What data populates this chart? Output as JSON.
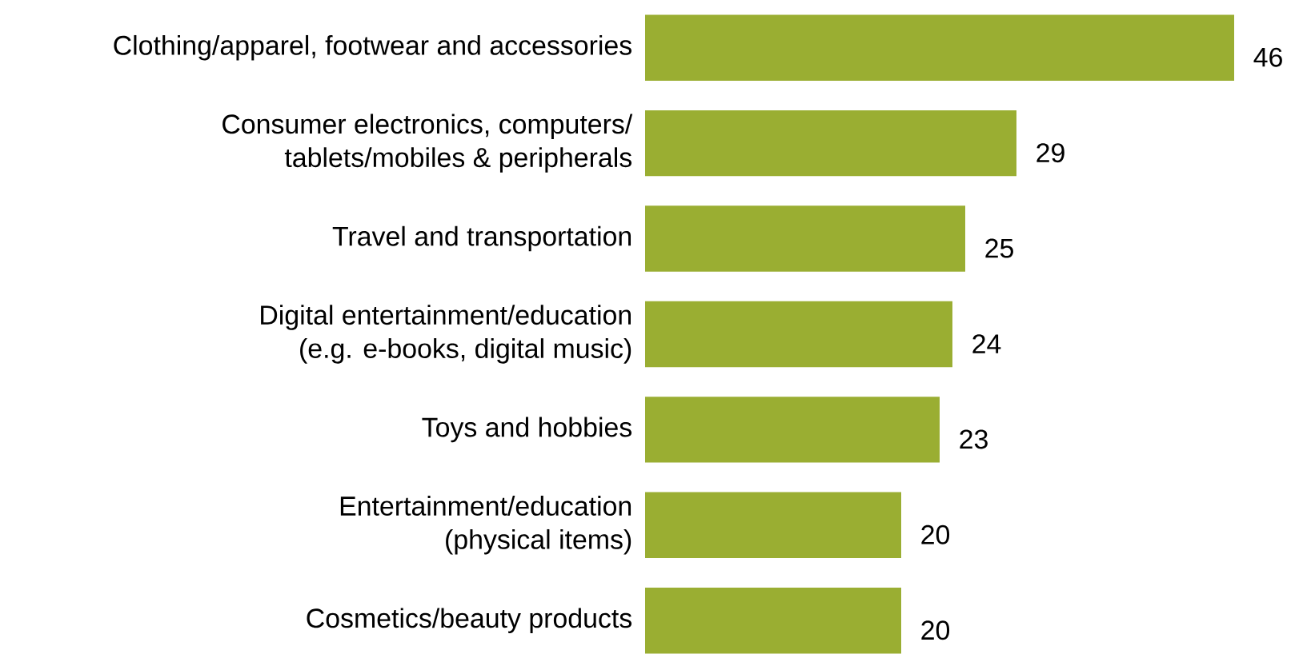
{
  "chart_data": {
    "type": "bar",
    "orientation": "horizontal",
    "data_labels": true,
    "color": "#9aae32",
    "categories": [
      "Clothing/apparel, footwear and accessories",
      "Consumer electronics, computers/\ntablets/mobiles & peripherals",
      "Travel and transportation",
      "Digital entertainment/education\n(e.g. e-books, digital music)",
      "Toys and hobbies",
      "Entertainment/education\n(physical items)",
      "Cosmetics/beauty products"
    ],
    "values": [
      46,
      29,
      25,
      24,
      23,
      20,
      20
    ]
  }
}
